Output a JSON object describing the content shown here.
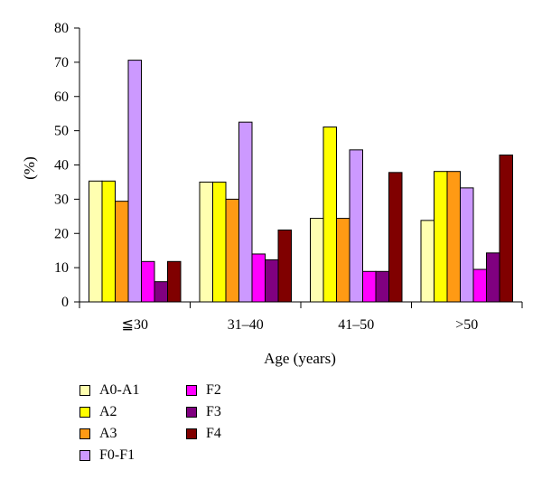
{
  "chart_data": {
    "type": "bar",
    "title": "",
    "xlabel": "Age (years)",
    "ylabel": "(%)",
    "ylim": [
      0,
      80
    ],
    "yticks": [
      "0",
      "10",
      "20",
      "30",
      "40",
      "50",
      "60",
      "70",
      "80"
    ],
    "categories": [
      "≦30",
      "31–40",
      "41–50",
      ">50"
    ],
    "grid": false,
    "legend_position": "bottom-left",
    "series": [
      {
        "name": "A0-A1",
        "color": "#FFFFB0",
        "values": [
          35.3,
          35,
          24.4,
          23.8
        ]
      },
      {
        "name": "A2",
        "color": "#FFFF00",
        "values": [
          35.3,
          35,
          51.1,
          38.1
        ]
      },
      {
        "name": "A3",
        "color": "#FF9A14",
        "values": [
          29.4,
          30,
          24.4,
          38.1
        ]
      },
      {
        "name": "F0-F1",
        "color": "#CC99FF",
        "values": [
          70.6,
          52.5,
          44.4,
          33.3
        ]
      },
      {
        "name": "F2",
        "color": "#FF00FF",
        "values": [
          11.8,
          14,
          8.9,
          9.5
        ]
      },
      {
        "name": "F3",
        "color": "#800080",
        "values": [
          5.9,
          12.3,
          8.9,
          14.3
        ]
      },
      {
        "name": "F4",
        "color": "#800000",
        "values": [
          11.8,
          21,
          37.8,
          42.9
        ]
      }
    ]
  }
}
